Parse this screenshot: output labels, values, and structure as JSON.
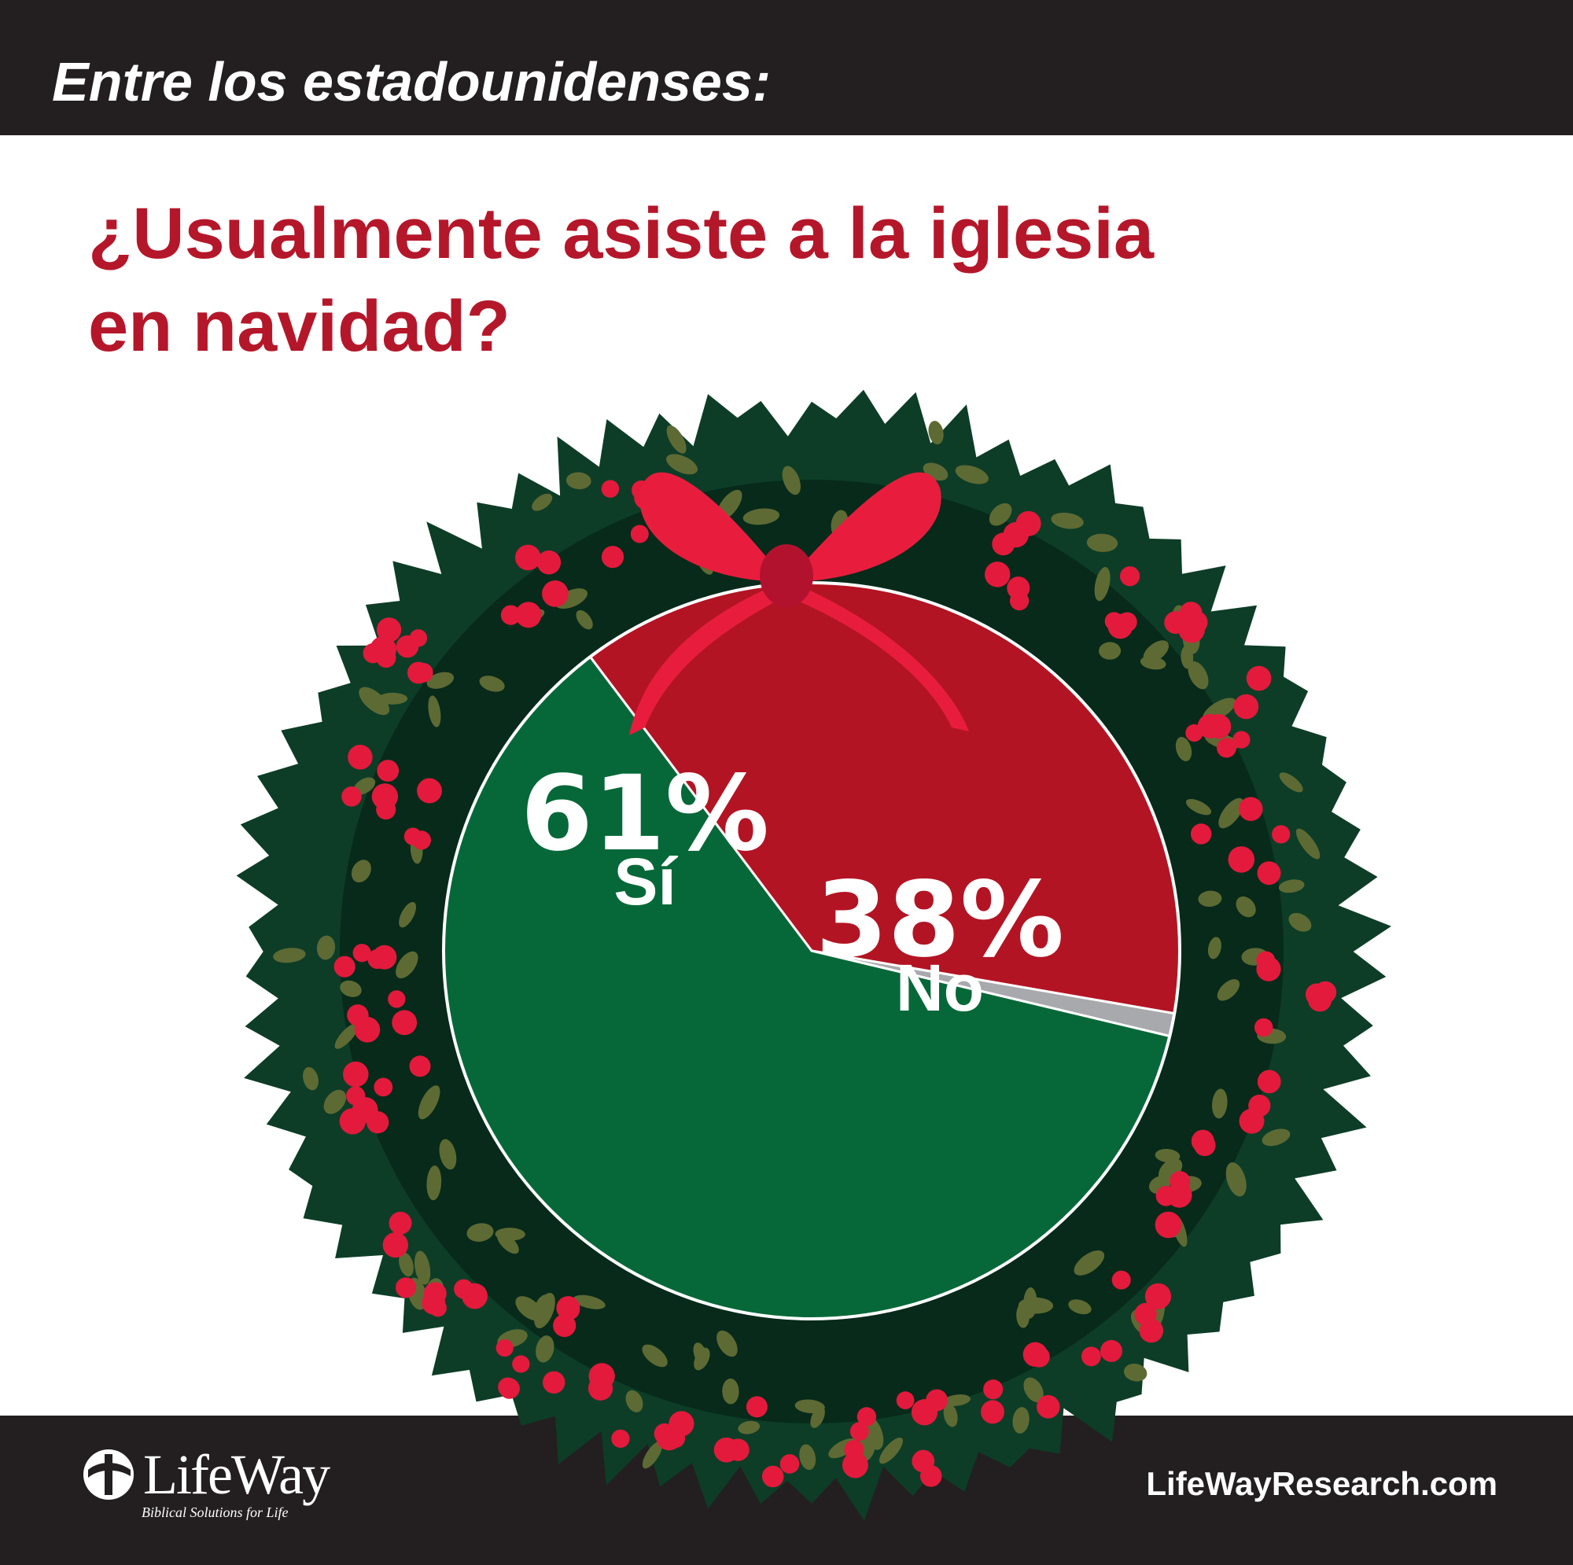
{
  "header": {
    "subtitle": "Entre los estadounidenses:"
  },
  "question": {
    "line1": "¿Usualmente asiste a la iglesia",
    "line2": "en navidad?"
  },
  "chart_data": {
    "type": "pie",
    "title": "¿Usualmente asiste a la iglesia en navidad?",
    "slices": [
      {
        "label": "Sí",
        "value": 61,
        "value_label": "61%",
        "color": "#066838"
      },
      {
        "label": "No",
        "value": 38,
        "value_label": "38%",
        "color": "#b31423"
      },
      {
        "label": "",
        "value": 1,
        "value_label": "",
        "color": "#a7a9ac"
      }
    ],
    "colors": {
      "wreath": "#0d3d27",
      "wreath_dark": "#072a1a",
      "leaf": "#5e6a34",
      "berry": "#e31a3c",
      "bow": "#e81d3d",
      "bow_dark": "#b3122e"
    }
  },
  "footer": {
    "logo_text": "LifeWay",
    "logo_tagline": "Biblical Solutions for Life",
    "website": "LifeWayResearch.com"
  }
}
